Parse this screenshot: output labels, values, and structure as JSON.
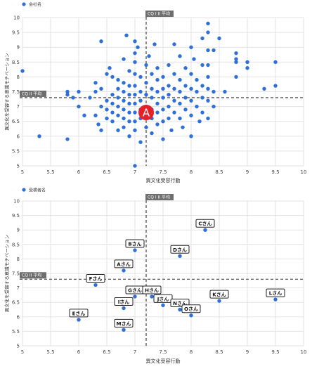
{
  "chart_data": [
    {
      "type": "scatter",
      "legend": {
        "label": "会社名",
        "position": "top-left"
      },
      "xlabel": "異文化受容行動",
      "ylabel": "異文化を受容する意識モチベーション",
      "xlim": [
        5,
        10
      ],
      "ylim": [
        5,
        10
      ],
      "xticks": [
        "5",
        "5.5",
        "6",
        "6.5",
        "7",
        "7.5",
        "8",
        "8.5",
        "9",
        "9.5",
        "10"
      ],
      "yticks": [
        "5",
        "5.5",
        "6",
        "6.5",
        "7",
        "7.5",
        "8",
        "8.5",
        "9",
        "9.5",
        "10"
      ],
      "grid": true,
      "color": "#2f6fd8",
      "ref_lines": [
        {
          "axis": "x",
          "value": 7.2,
          "label": "CQ I II 平均"
        },
        {
          "axis": "y",
          "value": 7.3,
          "label": "CQ II 平均"
        }
      ],
      "marker": {
        "label": "A",
        "x": 7.2,
        "y": 6.8,
        "color": "#e6202a"
      },
      "points": [
        [
          5.0,
          8.2
        ],
        [
          5.3,
          6.0
        ],
        [
          5.8,
          5.9
        ],
        [
          5.8,
          7.5
        ],
        [
          5.8,
          7.4
        ],
        [
          5.9,
          7.3
        ],
        [
          6.0,
          7.5
        ],
        [
          6.0,
          7.0
        ],
        [
          6.1,
          6.7
        ],
        [
          6.2,
          7.3
        ],
        [
          6.3,
          7.5
        ],
        [
          6.3,
          7.8
        ],
        [
          6.3,
          6.7
        ],
        [
          6.35,
          6.4
        ],
        [
          6.4,
          7.6
        ],
        [
          6.4,
          7.0
        ],
        [
          6.4,
          6.2
        ],
        [
          6.4,
          9.2
        ],
        [
          6.5,
          8.1
        ],
        [
          6.5,
          7.2
        ],
        [
          6.5,
          6.9
        ],
        [
          6.5,
          6.6
        ],
        [
          6.55,
          8.3
        ],
        [
          6.6,
          8.0
        ],
        [
          6.6,
          7.4
        ],
        [
          6.6,
          7.1
        ],
        [
          6.6,
          6.8
        ],
        [
          6.6,
          6.5
        ],
        [
          6.7,
          7.9
        ],
        [
          6.7,
          7.6
        ],
        [
          6.7,
          7.3
        ],
        [
          6.7,
          7.0
        ],
        [
          6.7,
          6.7
        ],
        [
          6.7,
          6.2
        ],
        [
          6.8,
          8.6
        ],
        [
          6.8,
          7.8
        ],
        [
          6.8,
          7.5
        ],
        [
          6.8,
          7.2
        ],
        [
          6.8,
          6.9
        ],
        [
          6.8,
          6.6
        ],
        [
          6.8,
          6.3
        ],
        [
          6.85,
          9.4
        ],
        [
          6.9,
          8.2
        ],
        [
          6.9,
          7.7
        ],
        [
          6.9,
          7.4
        ],
        [
          6.9,
          7.1
        ],
        [
          6.9,
          6.8
        ],
        [
          6.9,
          6.5
        ],
        [
          6.9,
          6.0
        ],
        [
          7.0,
          9.2
        ],
        [
          7.0,
          8.8
        ],
        [
          7.0,
          8.5
        ],
        [
          7.0,
          8.1
        ],
        [
          7.0,
          7.7
        ],
        [
          7.0,
          7.4
        ],
        [
          7.0,
          7.1
        ],
        [
          7.0,
          6.8
        ],
        [
          7.0,
          6.5
        ],
        [
          7.0,
          6.2
        ],
        [
          7.0,
          5.0
        ],
        [
          7.05,
          9.0
        ],
        [
          7.1,
          8.0
        ],
        [
          7.1,
          7.5
        ],
        [
          7.1,
          7.2
        ],
        [
          7.1,
          6.9
        ],
        [
          7.1,
          6.6
        ],
        [
          7.1,
          5.8
        ],
        [
          7.2,
          8.4
        ],
        [
          7.2,
          7.8
        ],
        [
          7.2,
          7.4
        ],
        [
          7.2,
          7.0
        ],
        [
          7.2,
          6.3
        ],
        [
          7.25,
          8.7
        ],
        [
          7.3,
          8.1
        ],
        [
          7.3,
          7.6
        ],
        [
          7.3,
          7.3
        ],
        [
          7.3,
          6.9
        ],
        [
          7.3,
          6.6
        ],
        [
          7.3,
          6.1
        ],
        [
          7.35,
          9.1
        ],
        [
          7.4,
          8.3
        ],
        [
          7.4,
          7.9
        ],
        [
          7.4,
          7.5
        ],
        [
          7.4,
          7.1
        ],
        [
          7.4,
          6.8
        ],
        [
          7.4,
          6.4
        ],
        [
          7.5,
          8.0
        ],
        [
          7.5,
          7.6
        ],
        [
          7.5,
          7.3
        ],
        [
          7.5,
          6.9
        ],
        [
          7.5,
          6.5
        ],
        [
          7.5,
          5.9
        ],
        [
          7.6,
          8.4
        ],
        [
          7.6,
          7.7
        ],
        [
          7.6,
          7.4
        ],
        [
          7.6,
          7.0
        ],
        [
          7.6,
          6.6
        ],
        [
          7.65,
          6.2
        ],
        [
          7.7,
          9.1
        ],
        [
          7.7,
          8.1
        ],
        [
          7.7,
          7.6
        ],
        [
          7.7,
          7.2
        ],
        [
          7.7,
          6.8
        ],
        [
          7.8,
          8.7
        ],
        [
          7.8,
          7.9
        ],
        [
          7.8,
          7.5
        ],
        [
          7.8,
          7.1
        ],
        [
          7.8,
          6.6
        ],
        [
          7.85,
          6.3
        ],
        [
          7.9,
          8.3
        ],
        [
          7.9,
          7.7
        ],
        [
          7.9,
          7.3
        ],
        [
          7.9,
          6.9
        ],
        [
          8.0,
          9.0
        ],
        [
          8.0,
          8.1
        ],
        [
          8.0,
          7.6
        ],
        [
          8.0,
          7.2
        ],
        [
          8.0,
          6.7
        ],
        [
          8.0,
          6.0
        ],
        [
          8.05,
          8.6
        ],
        [
          8.1,
          7.9
        ],
        [
          8.1,
          7.5
        ],
        [
          8.1,
          7.0
        ],
        [
          8.15,
          6.5
        ],
        [
          8.2,
          9.3
        ],
        [
          8.2,
          8.4
        ],
        [
          8.2,
          7.7
        ],
        [
          8.2,
          7.3
        ],
        [
          8.2,
          6.8
        ],
        [
          8.3,
          9.8
        ],
        [
          8.3,
          9.5
        ],
        [
          8.3,
          8.9
        ],
        [
          8.3,
          8.0
        ],
        [
          8.3,
          7.6
        ],
        [
          8.3,
          7.2
        ],
        [
          8.3,
          6.6
        ],
        [
          8.3,
          8.4
        ],
        [
          8.4,
          8.9
        ],
        [
          8.4,
          7.5
        ],
        [
          8.4,
          7.0
        ],
        [
          8.5,
          9.3
        ],
        [
          8.6,
          7.5
        ],
        [
          8.8,
          8.8
        ],
        [
          8.8,
          8.6
        ],
        [
          8.8,
          8.5
        ],
        [
          8.8,
          8.0
        ],
        [
          9.0,
          8.5
        ],
        [
          9.0,
          8.3
        ],
        [
          9.3,
          7.6
        ],
        [
          9.5,
          8.5
        ],
        [
          9.5,
          7.7
        ]
      ]
    },
    {
      "type": "scatter",
      "legend": {
        "label": "受検者名",
        "position": "top-left"
      },
      "xlabel": "異文化受容行動",
      "ylabel": "異文化を受容する意識モチベーション",
      "xlim": [
        5,
        10
      ],
      "ylim": [
        5,
        10
      ],
      "xticks": [
        "5",
        "5.5",
        "6",
        "6.5",
        "7",
        "7.5",
        "8",
        "8.5",
        "9",
        "9.5",
        "10"
      ],
      "yticks": [
        "5",
        "5.5",
        "6",
        "6.5",
        "7",
        "7.5",
        "8",
        "8.5",
        "9",
        "9.5",
        "10"
      ],
      "grid": true,
      "color": "#2f6fd8",
      "ref_lines": [
        {
          "axis": "x",
          "value": 7.2,
          "label": "CQ I II 平均"
        },
        {
          "axis": "y",
          "value": 7.3,
          "label": "CQ II 平均"
        }
      ],
      "points": [
        {
          "label": "Aさん",
          "x": 6.8,
          "y": 7.6
        },
        {
          "label": "Bさん",
          "x": 7.0,
          "y": 8.3
        },
        {
          "label": "Cさん",
          "x": 8.25,
          "y": 9.0
        },
        {
          "label": "Dさん",
          "x": 7.8,
          "y": 8.1
        },
        {
          "label": "Eさん",
          "x": 6.0,
          "y": 5.9
        },
        {
          "label": "Fさん",
          "x": 6.3,
          "y": 7.1
        },
        {
          "label": "Gさん",
          "x": 7.0,
          "y": 6.7
        },
        {
          "label": "Hさん",
          "x": 7.3,
          "y": 6.7
        },
        {
          "label": "Iさん",
          "x": 6.8,
          "y": 6.3
        },
        {
          "label": "Jさん",
          "x": 7.5,
          "y": 6.4
        },
        {
          "label": "Kさん",
          "x": 8.5,
          "y": 6.55
        },
        {
          "label": "Lさん",
          "x": 9.5,
          "y": 6.6
        },
        {
          "label": "Mさん",
          "x": 6.8,
          "y": 5.55
        },
        {
          "label": "Nさん",
          "x": 7.8,
          "y": 6.25
        },
        {
          "label": "Oさん",
          "x": 8.0,
          "y": 6.05
        }
      ]
    }
  ]
}
